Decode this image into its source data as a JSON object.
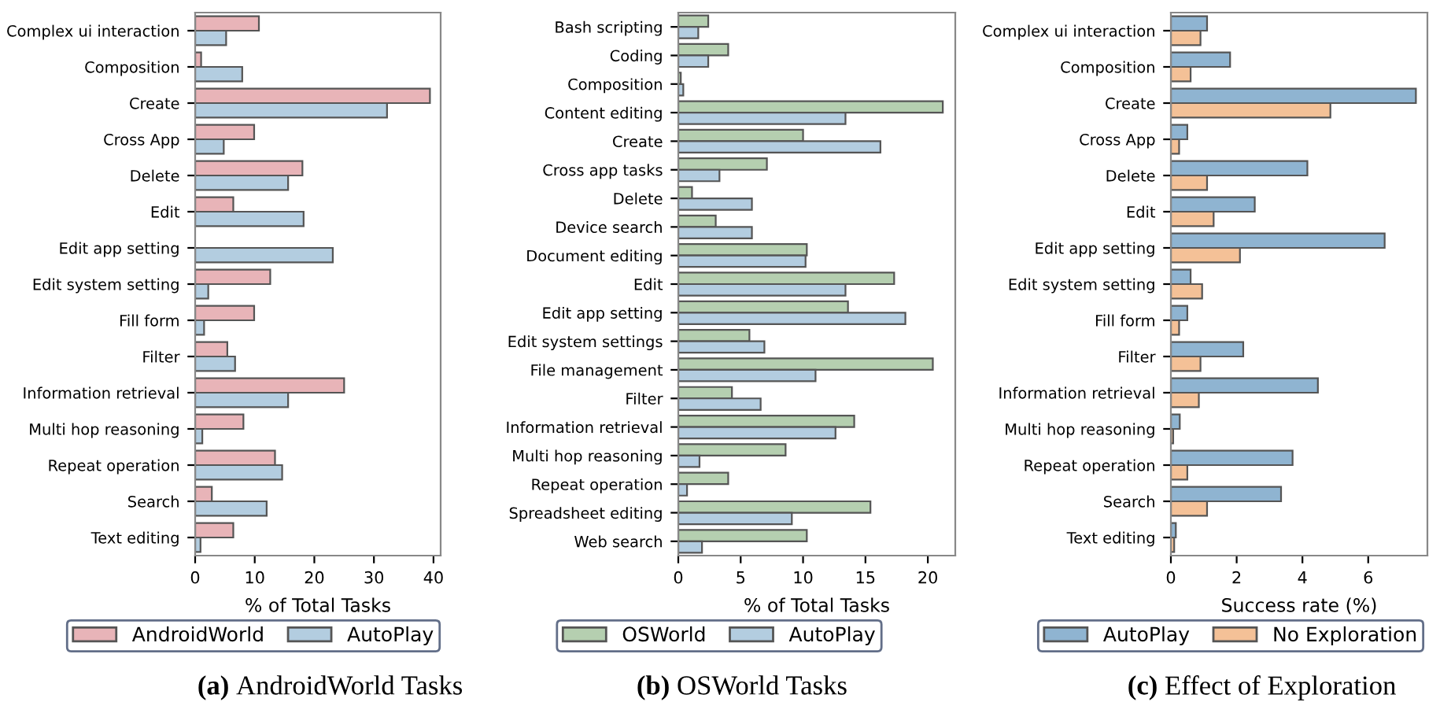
{
  "chart_data": [
    {
      "type": "bar",
      "orientation": "horizontal",
      "title": "(a) AndroidWorld Tasks",
      "xlabel": "% of Total Tasks",
      "categories": [
        "Complex ui interaction",
        "Composition",
        "Create",
        "Cross App",
        "Delete",
        "Edit",
        "Edit app setting",
        "Edit system setting",
        "Fill form",
        "Filter",
        "Information retrieval",
        "Multi hop reasoning",
        "Repeat operation",
        "Search",
        "Text editing"
      ],
      "series": [
        {
          "name": "AndroidWorld",
          "color": "#e8b4b8",
          "values": [
            10.7,
            1.0,
            39.4,
            9.9,
            18.0,
            6.4,
            null,
            12.6,
            9.9,
            5.4,
            25.0,
            8.1,
            13.4,
            2.8,
            6.4
          ]
        },
        {
          "name": "AutoPlay",
          "color": "#b3cde0",
          "values": [
            5.2,
            7.9,
            32.2,
            4.8,
            15.6,
            18.2,
            23.1,
            2.2,
            1.5,
            6.7,
            15.6,
            1.2,
            14.6,
            12.0,
            0.9
          ]
        }
      ],
      "xlim": [
        0,
        41.2
      ],
      "xticks": [
        0,
        10,
        20,
        30,
        40
      ],
      "grid": false,
      "legend": "bottom"
    },
    {
      "type": "bar",
      "orientation": "horizontal",
      "title": "(b) OSWorld Tasks",
      "xlabel": "% of Total Tasks",
      "categories": [
        "Bash scripting",
        "Coding",
        "Composition",
        "Content editing",
        "Create",
        "Cross app tasks",
        "Delete",
        "Device search",
        "Document editing",
        "Edit",
        "Edit app setting",
        "Edit system settings",
        "File management",
        "Filter",
        "Information retrieval",
        "Multi hop reasoning",
        "Repeat operation",
        "Spreadsheet editing",
        "Web search"
      ],
      "series": [
        {
          "name": "OSWorld",
          "color": "#b5cfb0",
          "values": [
            2.4,
            4.0,
            0.2,
            21.2,
            10.0,
            7.1,
            1.1,
            3.0,
            10.3,
            17.3,
            13.6,
            5.7,
            20.4,
            4.3,
            14.1,
            8.6,
            4.0,
            15.4,
            10.3
          ]
        },
        {
          "name": "AutoPlay",
          "color": "#b3cde0",
          "values": [
            1.6,
            2.4,
            0.4,
            13.4,
            16.2,
            3.3,
            5.9,
            5.9,
            10.2,
            13.4,
            18.2,
            6.9,
            11.0,
            6.6,
            12.6,
            1.7,
            0.7,
            9.1,
            1.9
          ]
        }
      ],
      "xlim": [
        0,
        22.2
      ],
      "xticks": [
        0,
        5,
        10,
        15,
        20
      ],
      "grid": false,
      "legend": "bottom"
    },
    {
      "type": "bar",
      "orientation": "horizontal",
      "title": "(c) Effect of Exploration",
      "xlabel": "Success rate (%)",
      "categories": [
        "Complex ui interaction",
        "Composition",
        "Create",
        "Cross App",
        "Delete",
        "Edit",
        "Edit app setting",
        "Edit system setting",
        "Fill form",
        "Filter",
        "Information retrieval",
        "Multi hop reasoning",
        "Repeat operation",
        "Search",
        "Text editing"
      ],
      "series": [
        {
          "name": "AutoPlay",
          "color": "#8fb4d1",
          "values": [
            1.1,
            1.8,
            7.45,
            0.5,
            4.15,
            2.55,
            6.5,
            0.6,
            0.5,
            2.2,
            4.47,
            0.27,
            3.7,
            3.35,
            0.15
          ]
        },
        {
          "name": "No Exploration",
          "color": "#f4c197",
          "values": [
            0.9,
            0.6,
            4.85,
            0.25,
            1.1,
            1.3,
            2.1,
            0.95,
            0.25,
            0.9,
            0.85,
            0.07,
            0.5,
            1.1,
            0.1
          ]
        }
      ],
      "xlim": [
        0,
        7.8
      ],
      "xticks": [
        0,
        2,
        4,
        6
      ],
      "grid": false,
      "legend": "bottom"
    }
  ]
}
